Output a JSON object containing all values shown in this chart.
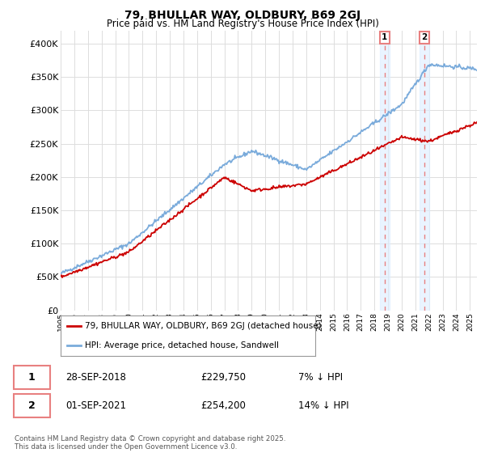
{
  "title": "79, BHULLAR WAY, OLDBURY, B69 2GJ",
  "subtitle": "Price paid vs. HM Land Registry's House Price Index (HPI)",
  "legend_line1": "79, BHULLAR WAY, OLDBURY, B69 2GJ (detached house)",
  "legend_line2": "HPI: Average price, detached house, Sandwell",
  "marker1_date": "28-SEP-2018",
  "marker1_price": "£229,750",
  "marker1_hpi": "7% ↓ HPI",
  "marker2_date": "01-SEP-2021",
  "marker2_price": "£254,200",
  "marker2_hpi": "14% ↓ HPI",
  "footer": "Contains HM Land Registry data © Crown copyright and database right 2025.\nThis data is licensed under the Open Government Licence v3.0.",
  "red_color": "#cc0000",
  "blue_color": "#7aabdb",
  "vline_color": "#e88080",
  "background_color": "#ffffff",
  "grid_color": "#dddddd",
  "highlight_color": "#ddeeff",
  "ylim": [
    0,
    420000
  ],
  "yticks": [
    0,
    50000,
    100000,
    150000,
    200000,
    250000,
    300000,
    350000,
    400000
  ],
  "year_start": 1995,
  "year_end": 2025.5,
  "marker1_year": 2018.75,
  "marker2_year": 2021.67
}
